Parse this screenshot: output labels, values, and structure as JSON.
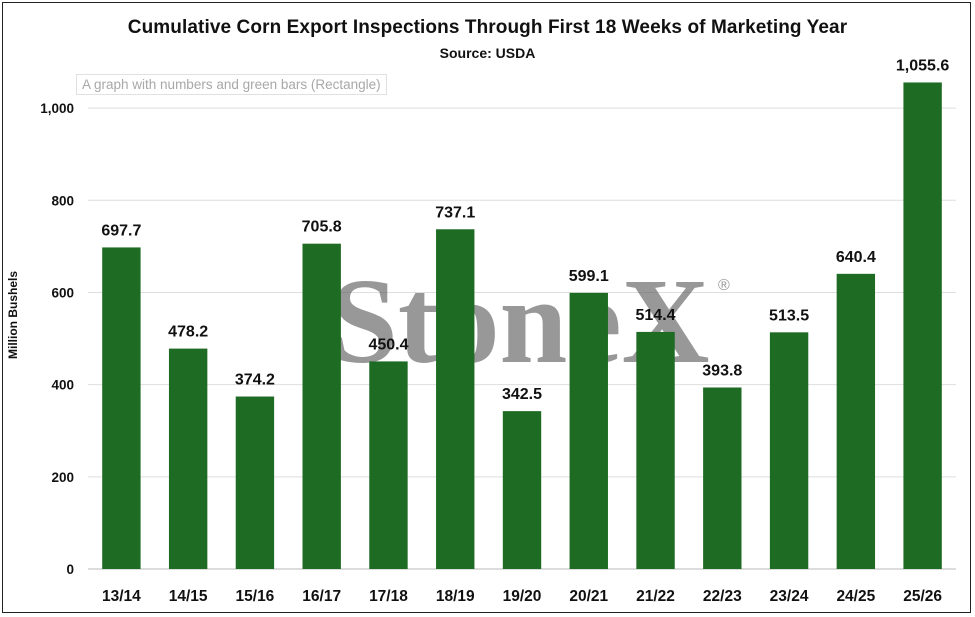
{
  "chart_data": {
    "type": "bar",
    "title": "Cumulative Corn Export Inspections Through First 18 Weeks of Marketing Year",
    "subtitle": "Source: USDA",
    "ylabel": "Million Bushels",
    "xlabel": "",
    "ylim": [
      0,
      1100
    ],
    "yticks": [
      0,
      200,
      400,
      600,
      800,
      1000
    ],
    "ytick_labels": [
      "0",
      "200",
      "400",
      "600",
      "800",
      "1,000"
    ],
    "grid": true,
    "legend": "none",
    "bar_color": "#1e6b24",
    "categories": [
      "13/14",
      "14/15",
      "15/16",
      "16/17",
      "17/18",
      "18/19",
      "19/20",
      "20/21",
      "21/22",
      "22/23",
      "23/24",
      "24/25",
      "25/26"
    ],
    "values": [
      697.7,
      478.2,
      374.2,
      705.8,
      450.4,
      737.1,
      342.5,
      599.1,
      514.4,
      393.8,
      513.5,
      640.4,
      1055.6
    ],
    "data_labels": [
      "697.7",
      "478.2",
      "374.2",
      "705.8",
      "450.4",
      "737.1",
      "342.5",
      "599.1",
      "514.4",
      "393.8",
      "513.5",
      "640.4",
      "1,055.6"
    ]
  },
  "watermark": {
    "text": "StoneX",
    "mark": "®"
  },
  "image_alt_label": "A graph with numbers and green bars (Rectangle)"
}
